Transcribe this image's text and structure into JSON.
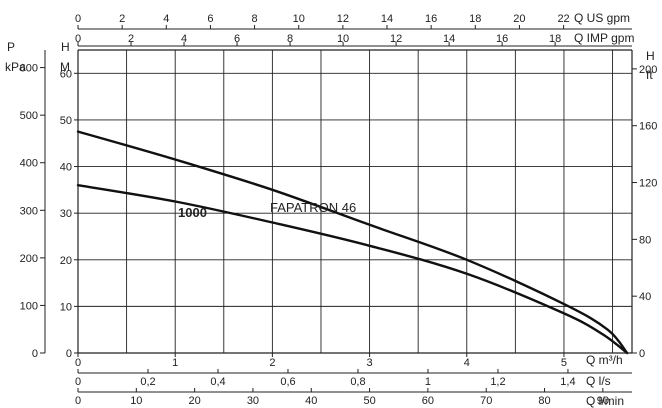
{
  "chart_data": {
    "type": "line",
    "plot": {
      "x_range": [
        0,
        5.7
      ],
      "y_range": [
        0,
        65
      ]
    },
    "axes": {
      "top1": {
        "unit_label": "Q US gpm",
        "range": [
          0,
          25.1
        ],
        "ticks": [
          0,
          2,
          4,
          6,
          8,
          10,
          12,
          14,
          16,
          18,
          20,
          22
        ],
        "tick_labels": [
          "0",
          "2",
          "4",
          "6",
          "8",
          "10",
          "12",
          "14",
          "16",
          "18",
          "20",
          "22"
        ]
      },
      "top2": {
        "unit_label": "Q IMP gpm",
        "range": [
          0,
          20.9
        ],
        "ticks": [
          0,
          2,
          4,
          6,
          8,
          10,
          12,
          14,
          16,
          18
        ],
        "tick_labels": [
          "0",
          "2",
          "4",
          "6",
          "8",
          "10",
          "12",
          "14",
          "16",
          "18"
        ]
      },
      "bottom1": {
        "unit_label": "Q m³/h",
        "range": [
          0,
          5.7
        ],
        "ticks": [
          0,
          1,
          2,
          3,
          4,
          5
        ],
        "tick_labels": [
          "0",
          "1",
          "2",
          "3",
          "4",
          "5"
        ]
      },
      "bottom2": {
        "unit_label": "Q l/s",
        "range": [
          0,
          1.583
        ],
        "ticks": [
          0,
          0.2,
          0.4,
          0.6,
          0.8,
          1,
          1.2,
          1.4
        ],
        "tick_labels": [
          "0",
          "0,2",
          "0,4",
          "0,6",
          "0,8",
          "1",
          "1,2",
          "1,4"
        ]
      },
      "bottom3": {
        "unit_label": "Q l/min",
        "range": [
          0,
          95
        ],
        "ticks": [
          0,
          10,
          20,
          30,
          40,
          50,
          60,
          70,
          80,
          90
        ],
        "tick_labels": [
          "0",
          "10",
          "20",
          "30",
          "40",
          "50",
          "60",
          "70",
          "80",
          "90"
        ]
      },
      "left_m": {
        "label": "H",
        "unit": "M",
        "range": [
          0,
          65
        ],
        "ticks": [
          0,
          10,
          20,
          30,
          40,
          50,
          60
        ],
        "tick_labels": [
          "0",
          "10",
          "20",
          "30",
          "40",
          "50",
          "60"
        ]
      },
      "left_kpa": {
        "label": "P",
        "unit": "kPa",
        "range": [
          0,
          637
        ],
        "ticks": [
          0,
          100,
          200,
          300,
          400,
          500,
          600
        ],
        "tick_labels": [
          "0",
          "100",
          "200",
          "300",
          "400",
          "500",
          "600"
        ]
      },
      "right_ft": {
        "label": "H",
        "unit": "ft",
        "range": [
          0,
          213.3
        ],
        "ticks": [
          0,
          40,
          80,
          120,
          160,
          200
        ],
        "tick_labels": [
          "0",
          "40",
          "80",
          "120",
          "160",
          "200"
        ]
      }
    },
    "series": [
      {
        "name": "FAPATRON 46",
        "x": [
          0,
          1,
          2,
          3,
          4,
          5,
          5.45,
          5.65
        ],
        "y": [
          47.5,
          41.5,
          35,
          27.5,
          20,
          10.5,
          5,
          0
        ]
      },
      {
        "name": "1000",
        "x": [
          0,
          1,
          2,
          3,
          4,
          5,
          5.4,
          5.65
        ],
        "y": [
          36,
          32.5,
          28,
          23,
          17,
          8.5,
          4,
          0
        ]
      }
    ],
    "grid": true
  }
}
